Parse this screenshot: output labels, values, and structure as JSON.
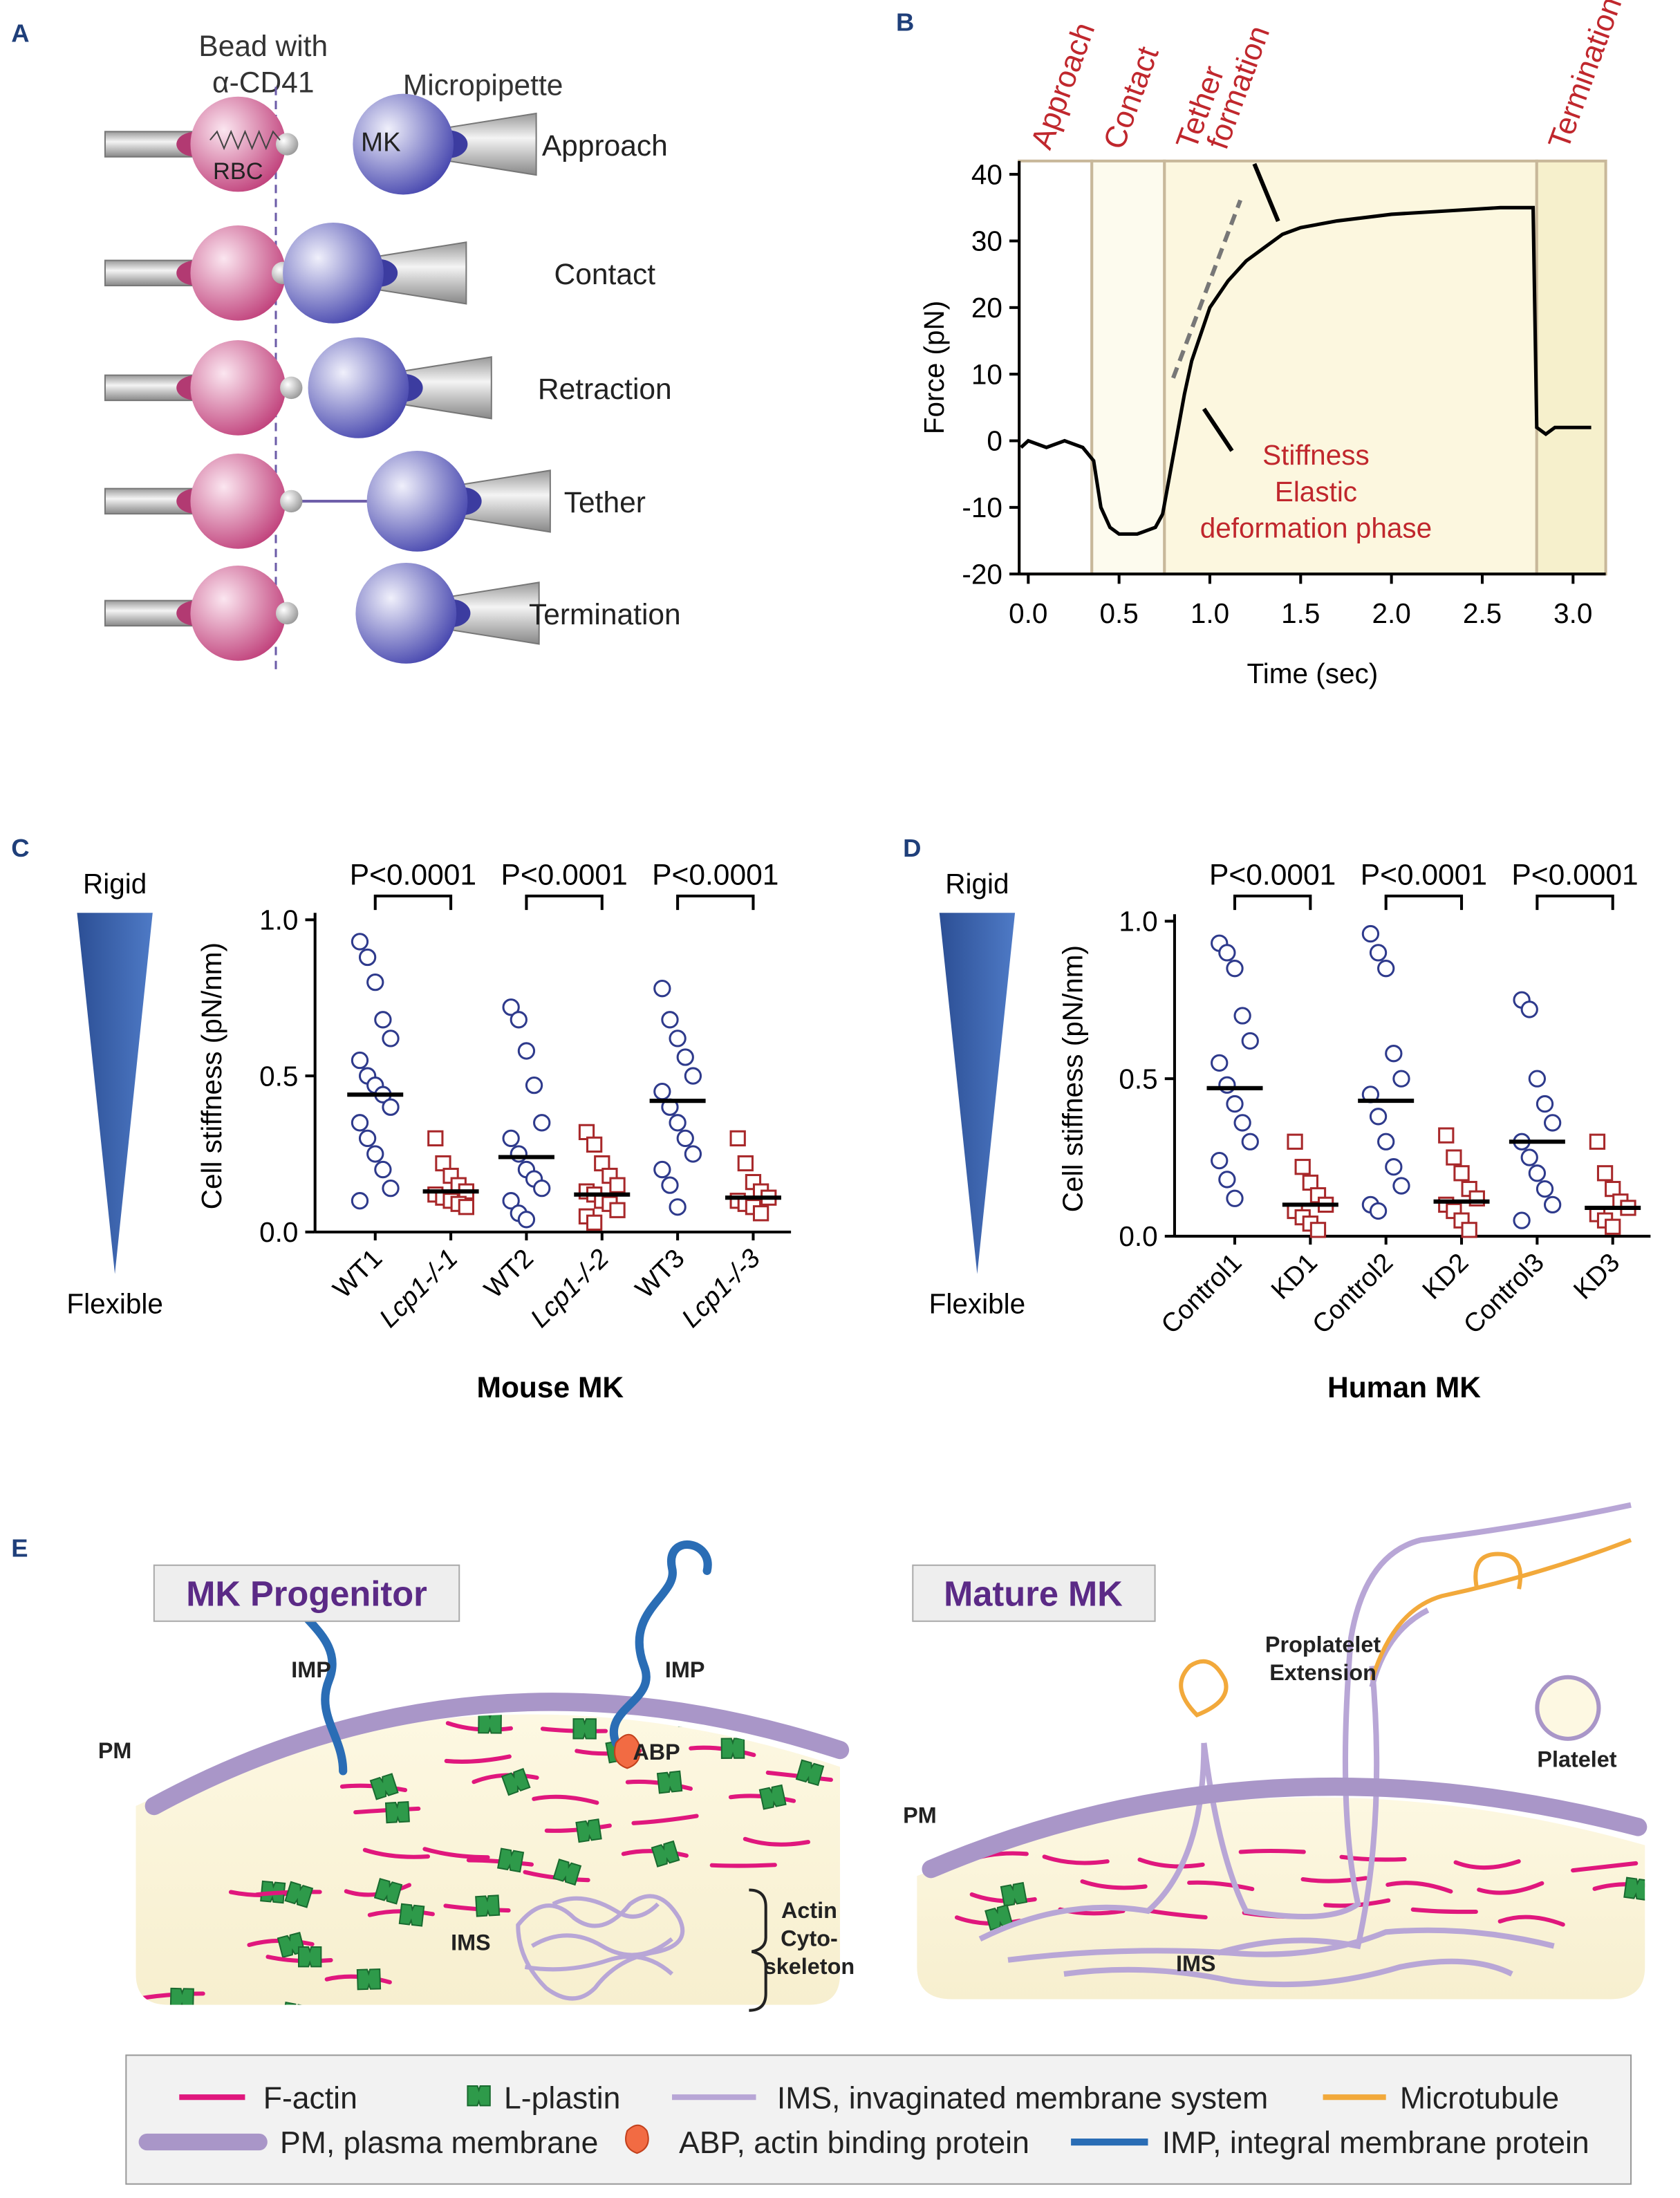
{
  "panel_a": {
    "label": "A",
    "bead_label_lines": [
      "Bead with",
      "α-CD41"
    ],
    "micropipette": "Micropipette",
    "rbc": "RBC",
    "mk": "MK",
    "steps": [
      "Approach",
      "Contact",
      "Retraction",
      "Tether",
      "Termination"
    ]
  },
  "chart_data": [
    {
      "type": "line",
      "panel_label": "B",
      "x_label": "Time (sec)",
      "y_label": "Force (pN)",
      "xlim": [
        -0.05,
        3.18
      ],
      "ylim": [
        -20,
        42
      ],
      "xticks": [
        {
          "value": 0,
          "label": "0.0"
        },
        0.5,
        {
          "value": 1,
          "label": "1.0"
        },
        1.5,
        {
          "value": 2,
          "label": "2.0"
        },
        2.5,
        {
          "value": 3,
          "label": "3.0"
        }
      ],
      "yticks": [
        -20,
        -10,
        0,
        10,
        20,
        30,
        40
      ],
      "phases": [
        [
          "Approach"
        ],
        [
          "Contact"
        ],
        [
          "Tether",
          "formation"
        ],
        [
          "Termination"
        ]
      ],
      "phase_bounds": [
        0.35,
        0.75,
        2.8
      ],
      "phase_colors": [
        "#ffffff",
        "#fdfbee",
        "#fcf7df",
        "#f6f0cc"
      ],
      "annotation_lines": [
        "Stiffness",
        "Elastic",
        "deformation phase"
      ],
      "x": [
        -0.04,
        0,
        0.1,
        0.2,
        0.3,
        0.36,
        0.4,
        0.45,
        0.5,
        0.6,
        0.7,
        0.74,
        0.78,
        0.82,
        0.86,
        0.9,
        0.95,
        1.0,
        1.1,
        1.2,
        1.3,
        1.4,
        1.5,
        1.7,
        2.0,
        2.3,
        2.6,
        2.78,
        2.8,
        2.85,
        2.9,
        3.0,
        3.1
      ],
      "series": [
        {
          "color": "#000000",
          "values": [
            -1,
            0,
            -1,
            0,
            -1,
            -3,
            -10,
            -13,
            -14,
            -14,
            -13,
            -11,
            -5,
            1,
            7,
            12,
            16,
            20,
            24,
            27,
            29,
            31,
            32,
            33,
            34,
            34.5,
            35,
            35,
            2,
            1,
            2,
            2,
            2
          ]
        }
      ]
    },
    {
      "type": "strip",
      "panel_label": "C",
      "rigid_label": "Rigid",
      "flexible_label": "Flexible",
      "x_label": "Mouse MK",
      "y_label": "Cell stiffness (pN/nm)",
      "ylim": [
        0,
        1
      ],
      "yticks": [
        {
          "value": 0,
          "label": "0.0"
        },
        0.5,
        {
          "value": 1,
          "label": "1.0"
        }
      ],
      "categories": [
        "WT1",
        "Lcp1-/-1",
        "WT2",
        "Lcp1-/-2",
        "WT3",
        "Lcp1-/-3"
      ],
      "means": [
        0.44,
        0.13,
        0.24,
        0.12,
        0.42,
        0.11
      ],
      "markers": [
        "circle",
        "square",
        "circle",
        "square",
        "circle",
        "square"
      ],
      "colors": [
        "#2e3a8c",
        "#a8282a",
        "#2e3a8c",
        "#a8282a",
        "#2e3a8c",
        "#a8282a"
      ],
      "points": [
        [
          0.93,
          0.88,
          0.8,
          0.68,
          0.62,
          0.55,
          0.5,
          0.47,
          0.44,
          0.4,
          0.35,
          0.3,
          0.25,
          0.2,
          0.14,
          0.1
        ],
        [
          0.3,
          0.22,
          0.18,
          0.15,
          0.13,
          0.12,
          0.11,
          0.1,
          0.09,
          0.08
        ],
        [
          0.72,
          0.68,
          0.58,
          0.47,
          0.35,
          0.3,
          0.25,
          0.2,
          0.17,
          0.14,
          0.1,
          0.06,
          0.04
        ],
        [
          0.32,
          0.28,
          0.22,
          0.18,
          0.15,
          0.13,
          0.12,
          0.1,
          0.09,
          0.07,
          0.05,
          0.03
        ],
        [
          0.78,
          0.68,
          0.62,
          0.56,
          0.5,
          0.45,
          0.4,
          0.35,
          0.3,
          0.25,
          0.2,
          0.15,
          0.08
        ],
        [
          0.3,
          0.22,
          0.16,
          0.13,
          0.11,
          0.1,
          0.09,
          0.08,
          0.06
        ]
      ],
      "comparisons": [
        "P<0.0001",
        "P<0.0001",
        "P<0.0001"
      ]
    },
    {
      "type": "strip",
      "panel_label": "D",
      "rigid_label": "Rigid",
      "flexible_label": "Flexible",
      "x_label": "Human MK",
      "y_label": "Cell stiffness (pN/nm)",
      "ylim": [
        0,
        1
      ],
      "yticks": [
        {
          "value": 0,
          "label": "0.0"
        },
        0.5,
        {
          "value": 1,
          "label": "1.0"
        }
      ],
      "categories": [
        "Control1",
        "KD1",
        "Control2",
        "KD2",
        "Control3",
        "KD3"
      ],
      "means": [
        0.47,
        0.1,
        0.43,
        0.11,
        0.3,
        0.09
      ],
      "markers": [
        "circle",
        "square",
        "circle",
        "square",
        "circle",
        "square"
      ],
      "colors": [
        "#2e3a8c",
        "#a8282a",
        "#2e3a8c",
        "#a8282a",
        "#2e3a8c",
        "#a8282a"
      ],
      "points": [
        [
          0.93,
          0.9,
          0.85,
          0.7,
          0.62,
          0.55,
          0.48,
          0.42,
          0.36,
          0.3,
          0.24,
          0.18,
          0.12
        ],
        [
          0.3,
          0.22,
          0.17,
          0.13,
          0.1,
          0.08,
          0.06,
          0.04,
          0.02
        ],
        [
          0.96,
          0.9,
          0.85,
          0.58,
          0.5,
          0.45,
          0.38,
          0.3,
          0.22,
          0.16,
          0.1,
          0.08
        ],
        [
          0.32,
          0.25,
          0.2,
          0.15,
          0.12,
          0.1,
          0.08,
          0.05,
          0.02
        ],
        [
          0.75,
          0.72,
          0.5,
          0.42,
          0.36,
          0.3,
          0.25,
          0.2,
          0.15,
          0.1,
          0.05
        ],
        [
          0.3,
          0.2,
          0.15,
          0.11,
          0.09,
          0.07,
          0.05,
          0.03
        ]
      ],
      "comparisons": [
        "P<0.0001",
        "P<0.0001",
        "P<0.0001"
      ]
    }
  ],
  "panel_e": {
    "label": "E",
    "progenitor": {
      "title": "MK Progenitor",
      "pm": "PM",
      "imp": [
        "IMP",
        "IMP"
      ],
      "abp": "ABP",
      "actin_lines": [
        "Actin",
        "Cyto-",
        "skeleton"
      ],
      "ims": "IMS"
    },
    "mature": {
      "title": "Mature MK",
      "proplatelet_lines": [
        "Proplatelet",
        "Extension"
      ],
      "platelet": "Platelet",
      "pm": "PM",
      "ims": "IMS"
    },
    "legend": [
      "F-actin",
      "L-plastin",
      "IMS, invaginated membrane system",
      "Microtubule",
      "PM, plasma membrane",
      "ABP, actin binding protein",
      "IMP, integral membrane protein"
    ]
  }
}
